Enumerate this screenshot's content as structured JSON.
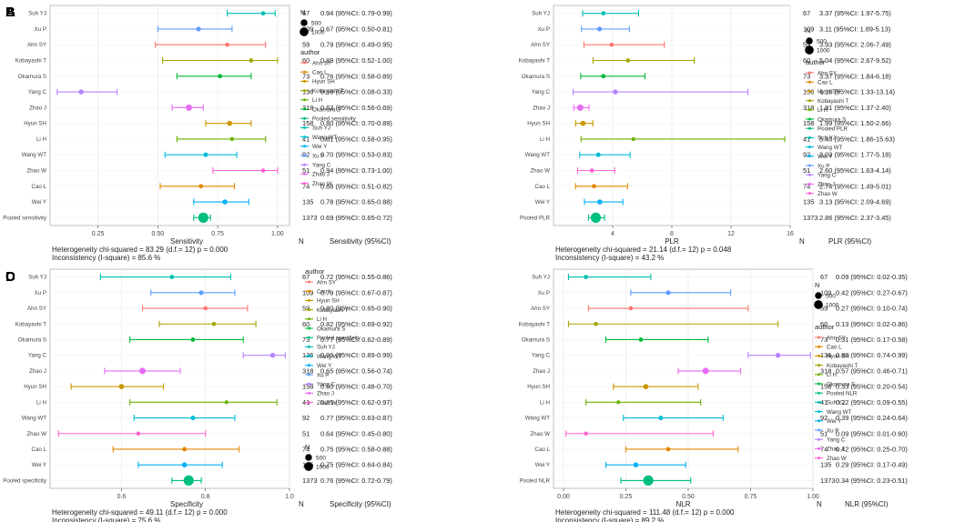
{
  "legend_author_title": "author",
  "legend_size_title": "N",
  "legend_size_labels": [
    "500",
    "1000"
  ],
  "author_colors": {
    "Ahn SY": "#F8766D",
    "Cao L": "#E58700",
    "Hyun SH": "#C99800",
    "Kobayashi T": "#A3A500",
    "Li H": "#6BB100",
    "Okamura S": "#00BA38",
    "Pooled": "#00BF7D",
    "Suh YJ": "#00C0AF",
    "Wang WT": "#00BCD8",
    "Wei Y": "#00B0F6",
    "Xu P": "#619CFF",
    "Yang C": "#B983FF",
    "Zhao J": "#E76BF3",
    "Zhao W": "#FD61D1"
  },
  "col_n_header": "N",
  "chart_data": [
    {
      "panel": "A",
      "type": "forest",
      "measure": "Sensitivity",
      "pooled_label": "Pooled sensitivity",
      "xlabel": "Sensitivity",
      "col_header": "Sensitivity (95%CI)",
      "xlim": [
        0.05,
        1.05
      ],
      "ticks": [
        0.25,
        0.5,
        0.75,
        1.0
      ],
      "tick_labels": [
        "0.25",
        "0.50",
        "0.75",
        "1.00"
      ],
      "rows": [
        {
          "author": "Suh YJ",
          "n": 67,
          "est": 0.94,
          "lo": 0.79,
          "hi": 0.99,
          "text": "0.94 (95%CI: 0.79-0.99)"
        },
        {
          "author": "Xu P",
          "n": 109,
          "est": 0.67,
          "lo": 0.5,
          "hi": 0.81,
          "text": "0.67 (95%CI: 0.50-0.81)"
        },
        {
          "author": "Ahn SY",
          "n": 59,
          "est": 0.79,
          "lo": 0.49,
          "hi": 0.95,
          "text": "0.79 (95%CI: 0.49-0.95)"
        },
        {
          "author": "Kobayashi T",
          "n": 60,
          "est": 0.89,
          "lo": 0.52,
          "hi": 1.0,
          "text": "0.89 (95%CI: 0.52-1.00)"
        },
        {
          "author": "Okamura S",
          "n": 73,
          "est": 0.76,
          "lo": 0.58,
          "hi": 0.89,
          "text": "0.76 (95%CI: 0.58-0.89)"
        },
        {
          "author": "Yang C",
          "n": 136,
          "est": 0.18,
          "lo": 0.08,
          "hi": 0.33,
          "text": "0.18 (95%CI: 0.08-0.33)"
        },
        {
          "author": "Zhao J",
          "n": 318,
          "est": 0.63,
          "lo": 0.56,
          "hi": 0.69,
          "text": "0.63 (95%CI: 0.56-0.69)"
        },
        {
          "author": "Hyun SH",
          "n": 158,
          "est": 0.8,
          "lo": 0.7,
          "hi": 0.89,
          "text": "0.80 (95%CI: 0.70-0.89)"
        },
        {
          "author": "Li H",
          "n": 41,
          "est": 0.81,
          "lo": 0.58,
          "hi": 0.95,
          "text": "0.81 (95%CI: 0.58-0.95)"
        },
        {
          "author": "Wang WT",
          "n": 92,
          "est": 0.7,
          "lo": 0.53,
          "hi": 0.83,
          "text": "0.70 (95%CI: 0.53-0.83)"
        },
        {
          "author": "Zhao W",
          "n": 51,
          "est": 0.94,
          "lo": 0.73,
          "hi": 1.0,
          "text": "0.94 (95%CI: 0.73-1.00)"
        },
        {
          "author": "Cao L",
          "n": 74,
          "est": 0.68,
          "lo": 0.51,
          "hi": 0.82,
          "text": "0.68 (95%CI: 0.51-0.82)"
        },
        {
          "author": "Wei Y",
          "n": 135,
          "est": 0.78,
          "lo": 0.65,
          "hi": 0.88,
          "text": "0.78 (95%CI: 0.65-0.88)"
        },
        {
          "author": "Pooled",
          "label": "Pooled sensitivity",
          "n": 1373,
          "est": 0.69,
          "lo": 0.65,
          "hi": 0.72,
          "text": "0.69 (95%CI: 0.65-0.72)"
        }
      ],
      "het_line": "Heterogeneity chi-squared = 83.29 (d.f.= 12) p = 0.000",
      "inc_line": "Inconsistency (I-square) = 85.6 %"
    },
    {
      "panel": "B",
      "type": "forest",
      "measure": "PLR",
      "pooled_label": "Pooled PLR",
      "xlabel": "PLR",
      "col_header": "PLR (95%CI)",
      "xlim": [
        0,
        16
      ],
      "ticks": [
        4,
        8,
        12,
        16
      ],
      "tick_labels": [
        "4",
        "8",
        "12",
        "16"
      ],
      "rows": [
        {
          "author": "Suh YJ",
          "n": 67,
          "est": 3.37,
          "lo": 1.97,
          "hi": 5.75,
          "text": "3.37 (95%CI: 1.97-5.75)"
        },
        {
          "author": "Xu P",
          "n": 109,
          "est": 3.11,
          "lo": 1.89,
          "hi": 5.13,
          "text": "3.11 (95%CI: 1.89-5.13)"
        },
        {
          "author": "Ahn SY",
          "n": 59,
          "est": 3.93,
          "lo": 2.06,
          "hi": 7.49,
          "text": "3.93 (95%CI: 2.06-7.49)"
        },
        {
          "author": "Kobayashi T",
          "n": 60,
          "est": 5.04,
          "lo": 2.67,
          "hi": 9.52,
          "text": "5.04 (95%CI: 2.67-9.52)"
        },
        {
          "author": "Okamura S",
          "n": 73,
          "est": 3.37,
          "lo": 1.84,
          "hi": 6.18,
          "text": "3.37 (95%CI: 1.84-6.18)"
        },
        {
          "author": "Yang C",
          "n": 136,
          "est": 4.18,
          "lo": 1.33,
          "hi": 13.14,
          "text": "4.18 (95%CI: 1.33-13.14)"
        },
        {
          "author": "Zhao J",
          "n": 318,
          "est": 1.81,
          "lo": 1.37,
          "hi": 2.4,
          "text": "1.81 (95%CI: 1.37-2.40)"
        },
        {
          "author": "Hyun SH",
          "n": 158,
          "est": 1.99,
          "lo": 1.5,
          "hi": 2.66,
          "text": "1.99 (95%CI: 1.50-2.66)"
        },
        {
          "author": "Li H",
          "n": 41,
          "est": 5.4,
          "lo": 1.86,
          "hi": 15.63,
          "text": "5.40 (95%CI: 1.86-15.63)"
        },
        {
          "author": "Wang WT",
          "n": 92,
          "est": 3.03,
          "lo": 1.77,
          "hi": 5.18,
          "text": "3.03 (95%CI: 1.77-5.18)"
        },
        {
          "author": "Zhao W",
          "n": 51,
          "est": 2.6,
          "lo": 1.63,
          "hi": 4.14,
          "text": "2.60 (95%CI: 1.63-4.14)"
        },
        {
          "author": "Cao L",
          "n": 74,
          "est": 2.74,
          "lo": 1.49,
          "hi": 5.01,
          "text": "2.74 (95%CI: 1.49-5.01)"
        },
        {
          "author": "Wei Y",
          "n": 135,
          "est": 3.13,
          "lo": 2.09,
          "hi": 4.69,
          "text": "3.13 (95%CI: 2.09-4.69)"
        },
        {
          "author": "Pooled",
          "label": "Pooled PLR",
          "n": 1373,
          "est": 2.86,
          "lo": 2.37,
          "hi": 3.45,
          "text": "2.86 (95%CI: 2.37-3.45)"
        }
      ],
      "het_line": "Heterogeneity chi-squared = 21.14 (d.f.= 12) p = 0.048",
      "inc_line": "Inconsistency (I-square) = 43.2 %"
    },
    {
      "panel": "C",
      "type": "forest",
      "measure": "Specificity",
      "pooled_label": "Pooled specificity",
      "xlabel": "Specificity",
      "col_header": "Specificity (95%CI)",
      "xlim": [
        0.43,
        1.0
      ],
      "ticks": [
        0.6,
        0.8,
        1.0
      ],
      "tick_labels": [
        "0.6",
        "0.8",
        "1.0"
      ],
      "rows": [
        {
          "author": "Suh YJ",
          "n": 67,
          "est": 0.72,
          "lo": 0.55,
          "hi": 0.86,
          "text": "0.72 (95%CI: 0.55-0.86)"
        },
        {
          "author": "Xu P",
          "n": 109,
          "est": 0.79,
          "lo": 0.67,
          "hi": 0.87,
          "text": "0.79 (95%CI: 0.67-0.87)"
        },
        {
          "author": "Ahn SY",
          "n": 59,
          "est": 0.8,
          "lo": 0.65,
          "hi": 0.9,
          "text": "0.80 (95%CI: 0.65-0.90)"
        },
        {
          "author": "Kobayashi T",
          "n": 60,
          "est": 0.82,
          "lo": 0.69,
          "hi": 0.92,
          "text": "0.82 (95%CI: 0.69-0.92)"
        },
        {
          "author": "Okamura S",
          "n": 73,
          "est": 0.77,
          "lo": 0.62,
          "hi": 0.89,
          "text": "0.77 (95%CI: 0.62-0.89)"
        },
        {
          "author": "Yang C",
          "n": 136,
          "est": 0.96,
          "lo": 0.89,
          "hi": 0.99,
          "text": "0.96 (95%CI: 0.89-0.99)"
        },
        {
          "author": "Zhao J",
          "n": 318,
          "est": 0.65,
          "lo": 0.56,
          "hi": 0.74,
          "text": "0.65 (95%CI: 0.56-0.74)"
        },
        {
          "author": "Hyun SH",
          "n": 158,
          "est": 0.6,
          "lo": 0.48,
          "hi": 0.7,
          "text": "0.60 (95%CI: 0.48-0.70)"
        },
        {
          "author": "Li H",
          "n": 41,
          "est": 0.85,
          "lo": 0.62,
          "hi": 0.97,
          "text": "0.85 (95%CI: 0.62-0.97)"
        },
        {
          "author": "Wang WT",
          "n": 92,
          "est": 0.77,
          "lo": 0.63,
          "hi": 0.87,
          "text": "0.77 (95%CI: 0.63-0.87)"
        },
        {
          "author": "Zhao W",
          "n": 51,
          "est": 0.64,
          "lo": 0.45,
          "hi": 0.8,
          "text": "0.64 (95%CI: 0.45-0.80)"
        },
        {
          "author": "Cao L",
          "n": 74,
          "est": 0.75,
          "lo": 0.58,
          "hi": 0.88,
          "text": "0.75 (95%CI: 0.58-0.88)"
        },
        {
          "author": "Wei Y",
          "n": 135,
          "est": 0.75,
          "lo": 0.64,
          "hi": 0.84,
          "text": "0.75 (95%CI: 0.64-0.84)"
        },
        {
          "author": "Pooled",
          "label": "Pooled specificity",
          "n": 1373,
          "est": 0.76,
          "lo": 0.72,
          "hi": 0.79,
          "text": "0.76 (95%CI: 0.72-0.79)"
        }
      ],
      "het_line": "Heterogeneity chi-squared = 49.11 (d.f.= 12) p = 0.000",
      "inc_line": "Inconsistency (I-square) = 75.6 %"
    },
    {
      "panel": "D",
      "type": "forest",
      "measure": "NLR",
      "pooled_label": "Pooled NLR",
      "xlabel": "NLR",
      "col_header": "NLR (95%CI)",
      "xlim": [
        -0.04,
        1.0
      ],
      "ticks": [
        0.0,
        0.25,
        0.5,
        0.75,
        1.0
      ],
      "tick_labels": [
        "0.00",
        "0.25",
        "0.50",
        "0.75",
        "1.00"
      ],
      "rows": [
        {
          "author": "Suh YJ",
          "n": 67,
          "est": 0.09,
          "lo": 0.02,
          "hi": 0.35,
          "text": "0.09 (95%CI: 0.02-0.35)"
        },
        {
          "author": "Xu P",
          "n": 109,
          "est": 0.42,
          "lo": 0.27,
          "hi": 0.67,
          "text": "0.42 (95%CI: 0.27-0.67)"
        },
        {
          "author": "Ahn SY",
          "n": 59,
          "est": 0.27,
          "lo": 0.1,
          "hi": 0.74,
          "text": "0.27 (95%CI: 0.10-0.74)"
        },
        {
          "author": "Kobayashi T",
          "n": 60,
          "est": 0.13,
          "lo": 0.02,
          "hi": 0.86,
          "text": "0.13 (95%CI: 0.02-0.86)"
        },
        {
          "author": "Okamura S",
          "n": 73,
          "est": 0.31,
          "lo": 0.17,
          "hi": 0.58,
          "text": "0.31 (95%CI: 0.17-0.58)"
        },
        {
          "author": "Yang C",
          "n": 136,
          "est": 0.86,
          "lo": 0.74,
          "hi": 0.99,
          "text": "0.86 (95%CI: 0.74-0.99)"
        },
        {
          "author": "Zhao J",
          "n": 318,
          "est": 0.57,
          "lo": 0.46,
          "hi": 0.71,
          "text": "0.57 (95%CI: 0.46-0.71)"
        },
        {
          "author": "Hyun SH",
          "n": 158,
          "est": 0.33,
          "lo": 0.2,
          "hi": 0.54,
          "text": "0.33 (95%CI: 0.20-0.54)"
        },
        {
          "author": "Li H",
          "n": 41,
          "est": 0.22,
          "lo": 0.09,
          "hi": 0.55,
          "text": "0.22 (95%CI: 0.09-0.55)"
        },
        {
          "author": "Wang WT",
          "n": 92,
          "est": 0.39,
          "lo": 0.24,
          "hi": 0.64,
          "text": "0.39 (95%CI: 0.24-0.64)"
        },
        {
          "author": "Zhao W",
          "n": 51,
          "est": 0.09,
          "lo": 0.01,
          "hi": 0.6,
          "text": "0.09 (95%CI: 0.01-0.60)"
        },
        {
          "author": "Cao L",
          "n": 74,
          "est": 0.42,
          "lo": 0.25,
          "hi": 0.7,
          "text": "0.42 (95%CI: 0.25-0.70)"
        },
        {
          "author": "Wei Y",
          "n": 135,
          "est": 0.29,
          "lo": 0.17,
          "hi": 0.49,
          "text": "0.29 (95%CI: 0.17-0.49)"
        },
        {
          "author": "Pooled",
          "label": "Pooled NLR",
          "n": 1373,
          "est": 0.34,
          "lo": 0.23,
          "hi": 0.51,
          "text": "0.34 (95%CI: 0.23-0.51)"
        }
      ],
      "het_line": "Heterogeneity chi-squared = 111.48 (d.f.= 12) p = 0.000",
      "inc_line": "Inconsistency (I-square) = 89.2 %"
    }
  ]
}
